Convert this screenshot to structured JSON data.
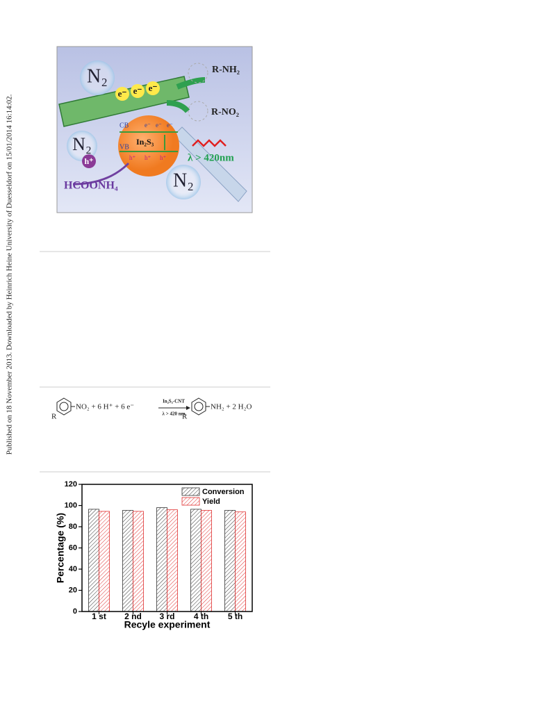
{
  "side_note": "Published on 18 November 2013. Downloaded by Heinrich Heine University of Duesseldorf on 15/01/2014 16:14:02.",
  "graphic": {
    "n2_labels": [
      "N₂",
      "N₂",
      "N₂"
    ],
    "product": "R-NH₂",
    "reactant": "R-NO₂",
    "electrons": [
      "e⁻",
      "e⁻",
      "e⁻"
    ],
    "band_electrons": [
      "e⁻",
      "e⁻",
      "e⁻"
    ],
    "cb": "CB",
    "vb": "VB",
    "catalyst": "In₂S₃",
    "holes": [
      "h⁺",
      "h⁺",
      "h⁺"
    ],
    "hole": "h⁺",
    "light": "λ > 420nm",
    "donor": "HCOONH₄"
  },
  "equation": {
    "left_r": "R",
    "left_terms": "NO₂ + 6 H⁺ + 6 e⁻",
    "catalyst": "In₂S₃-CNT",
    "condition": "λ > 420 nm",
    "right_r": "R",
    "right_terms": "NH₂ + 2 H₂O"
  },
  "chart_data": {
    "type": "bar",
    "xlabel": "Recyle experiment",
    "ylabel": "Percentage (%)",
    "categories": [
      "1 st",
      "2 nd",
      "3 rd",
      "4 th",
      "5 th"
    ],
    "series": [
      {
        "name": "Conversion",
        "color": "#333333",
        "values": [
          96.5,
          95.5,
          98,
          96.5,
          95.5
        ]
      },
      {
        "name": "Yield",
        "color": "#e03030",
        "values": [
          94.5,
          94.5,
          96,
          95.5,
          94
        ]
      }
    ],
    "ylim": [
      0,
      120
    ],
    "yticks": [
      0,
      20,
      40,
      60,
      80,
      100,
      120
    ],
    "legend": "upper right"
  }
}
